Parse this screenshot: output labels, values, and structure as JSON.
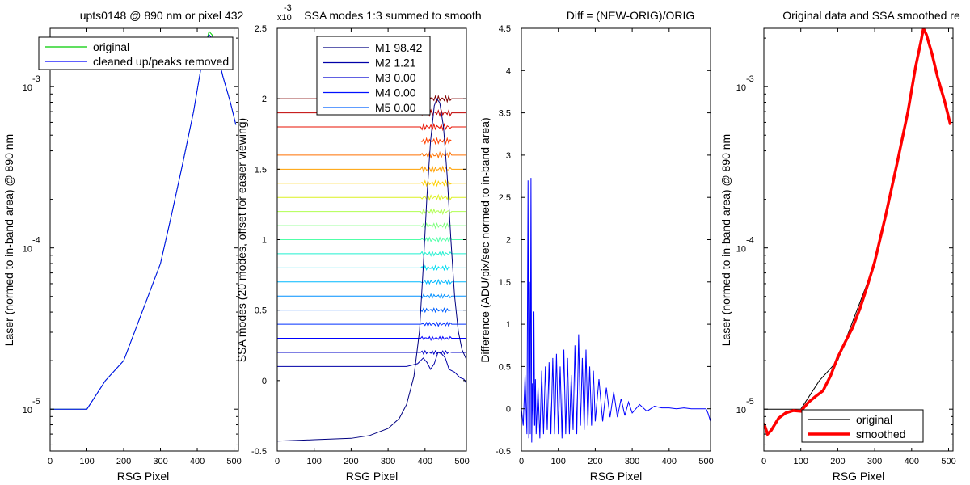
{
  "chart_data": [
    {
      "type": "line",
      "title": "upts0148 @ 890 nm or pixel 432",
      "xlabel": "RSG Pixel",
      "ylabel": "Laser (normed to in-band area) @ 890 nm",
      "xlim": [
        0,
        512
      ],
      "ylim": [
        5.5e-06,
        0.0023
      ],
      "yscale": "log",
      "xticks": [
        0,
        100,
        200,
        300,
        400,
        500
      ],
      "yticks": [
        {
          "label": "10",
          "exp": "-5",
          "value": 1e-05
        },
        {
          "label": "10",
          "exp": "-4",
          "value": 0.0001
        },
        {
          "label": "10",
          "exp": "-3",
          "value": 0.001
        }
      ],
      "legend_position": "top",
      "series": [
        {
          "name": "original",
          "color": "#00cc00",
          "x": [
            0,
            50,
            100,
            150,
            200,
            250,
            300,
            330,
            360,
            390,
            410,
            425,
            432,
            440,
            455,
            470,
            490,
            505
          ],
          "y": [
            1e-05,
            1e-05,
            1e-05,
            1.5e-05,
            2e-05,
            4e-05,
            8e-05,
            0.00016,
            0.00033,
            0.0007,
            0.0013,
            0.0019,
            0.0022,
            0.0021,
            0.0016,
            0.00115,
            0.0008,
            0.00058
          ]
        },
        {
          "name": "cleaned up/peaks removed",
          "color": "#0000ff",
          "x": [
            0,
            50,
            100,
            150,
            200,
            250,
            300,
            330,
            360,
            390,
            410,
            425,
            432,
            440,
            455,
            470,
            490,
            505
          ],
          "y": [
            1e-05,
            1e-05,
            1e-05,
            1.5e-05,
            2e-05,
            4e-05,
            8e-05,
            0.00016,
            0.00033,
            0.0007,
            0.0013,
            0.0019,
            0.0021,
            0.002,
            0.0016,
            0.00115,
            0.0008,
            0.00058
          ]
        }
      ]
    },
    {
      "type": "line",
      "title": "SSA modes 1:3 summed to smooth",
      "xlabel": "RSG Pixel",
      "ylabel": "SSA modes (20 modes, offset for easier viewing)",
      "xlim": [
        0,
        512
      ],
      "ylim": [
        -0.5,
        2.5
      ],
      "yscale_multiplier": {
        "base": "x10",
        "exp": "-3"
      },
      "xticks": [
        0,
        100,
        200,
        300,
        400,
        500
      ],
      "yticks": [
        -0.5,
        0,
        0.5,
        1,
        1.5,
        2,
        2.5
      ],
      "legend_position": "top",
      "legend": [
        {
          "name": "M1 98.42",
          "color": "#000080"
        },
        {
          "name": "M2 1.21",
          "color": "#0000a8"
        },
        {
          "name": "M3 0.00",
          "color": "#0000d0"
        },
        {
          "name": "M4 0.00",
          "color": "#0010ff"
        },
        {
          "name": "M5 0.00",
          "color": "#0060ff"
        }
      ],
      "mode1": {
        "color": "#000080",
        "x": [
          0,
          100,
          200,
          250,
          300,
          330,
          350,
          370,
          385,
          395,
          405,
          415,
          425,
          432,
          440,
          450,
          460,
          470,
          480,
          490,
          500,
          512
        ],
        "y": [
          -0.43,
          -0.42,
          -0.41,
          -0.39,
          -0.34,
          -0.27,
          -0.17,
          0.03,
          0.35,
          0.8,
          1.3,
          1.7,
          1.95,
          2.0,
          1.97,
          1.8,
          1.45,
          1.0,
          0.6,
          0.35,
          0.22,
          0.15
        ]
      },
      "mode2": {
        "color": "#0000a8",
        "x": [
          0,
          100,
          200,
          300,
          350,
          380,
          395,
          405,
          415,
          425,
          435,
          445,
          455,
          465,
          480,
          495,
          505,
          512
        ],
        "y": [
          0.1,
          0.1,
          0.1,
          0.1,
          0.1,
          0.12,
          0.16,
          0.13,
          0.08,
          0.12,
          0.2,
          0.19,
          0.16,
          0.08,
          0.06,
          0.02,
          0.01,
          -0.02
        ]
      },
      "offset_modes": [
        {
          "offset": 0.2,
          "color": "#0000c8"
        },
        {
          "offset": 0.3,
          "color": "#0000ff"
        },
        {
          "offset": 0.4,
          "color": "#0030ff"
        },
        {
          "offset": 0.5,
          "color": "#0060ff"
        },
        {
          "offset": 0.6,
          "color": "#0090ff"
        },
        {
          "offset": 0.7,
          "color": "#00b8ff"
        },
        {
          "offset": 0.8,
          "color": "#00dcf0"
        },
        {
          "offset": 0.9,
          "color": "#20f0d0"
        },
        {
          "offset": 1.0,
          "color": "#50ffa8"
        },
        {
          "offset": 1.1,
          "color": "#80ff80"
        },
        {
          "offset": 1.2,
          "color": "#b0ff50"
        },
        {
          "offset": 1.3,
          "color": "#dcf020"
        },
        {
          "offset": 1.4,
          "color": "#ffd000"
        },
        {
          "offset": 1.5,
          "color": "#ffa000"
        },
        {
          "offset": 1.6,
          "color": "#ff7000"
        },
        {
          "offset": 1.7,
          "color": "#ff4000"
        },
        {
          "offset": 1.8,
          "color": "#e81000"
        },
        {
          "offset": 1.9,
          "color": "#c00000"
        },
        {
          "offset": 2.0,
          "color": "#800000"
        }
      ]
    },
    {
      "type": "line",
      "title": "Diff = (NEW-ORIG)/ORIG",
      "xlabel": "RSG Pixel",
      "ylabel": "Difference (ADU/pix/sec normed to in-band area)",
      "xlim": [
        0,
        512
      ],
      "ylim": [
        -0.5,
        4.5
      ],
      "xticks": [
        0,
        100,
        200,
        300,
        400,
        500
      ],
      "yticks": [
        -0.5,
        0,
        0.5,
        1,
        1.5,
        2,
        2.5,
        3,
        3.5,
        4,
        4.5
      ],
      "series": [
        {
          "name": "diff",
          "color": "#0000ff",
          "x": [
            0,
            5,
            10,
            15,
            18,
            20,
            22,
            24,
            26,
            28,
            30,
            32,
            34,
            36,
            38,
            40,
            45,
            50,
            55,
            60,
            65,
            70,
            75,
            80,
            85,
            90,
            95,
            100,
            105,
            110,
            115,
            120,
            125,
            130,
            135,
            140,
            145,
            150,
            155,
            160,
            165,
            170,
            175,
            180,
            185,
            190,
            195,
            200,
            210,
            220,
            230,
            240,
            250,
            260,
            270,
            280,
            290,
            300,
            320,
            340,
            360,
            380,
            400,
            420,
            440,
            460,
            480,
            500,
            505,
            512
          ],
          "y": [
            0,
            -0.2,
            0.4,
            -0.3,
            2.7,
            -0.35,
            1.5,
            -0.3,
            2.73,
            -0.4,
            0.3,
            -0.2,
            1.15,
            -0.2,
            0.35,
            -0.3,
            0.25,
            -0.35,
            0.45,
            -0.3,
            0.5,
            -0.25,
            0.55,
            -0.3,
            0.6,
            -0.3,
            0.65,
            -0.3,
            0.5,
            -0.35,
            0.7,
            -0.3,
            0.6,
            -0.3,
            0.4,
            -0.25,
            0.75,
            -0.3,
            0.88,
            -0.2,
            0.6,
            -0.25,
            0.7,
            -0.2,
            0.5,
            -0.2,
            0.45,
            -0.15,
            0.35,
            -0.15,
            0.25,
            -0.1,
            0.2,
            -0.1,
            0.12,
            -0.08,
            0.08,
            -0.05,
            0.05,
            -0.03,
            0.03,
            0.01,
            0.01,
            0,
            0.01,
            0,
            0,
            0,
            -0.05,
            -0.15
          ]
        }
      ]
    },
    {
      "type": "line",
      "title": "Original data and SSA smoothed re",
      "xlabel": "RSG Pixel",
      "ylabel": "Laser (normed to in-band area) @ 890 nm",
      "xlim": [
        0,
        512
      ],
      "ylim": [
        5.5e-06,
        0.0023
      ],
      "yscale": "log",
      "xticks": [
        0,
        100,
        200,
        300,
        400,
        500
      ],
      "yticks": [
        {
          "label": "10",
          "exp": "-5",
          "value": 1e-05
        },
        {
          "label": "10",
          "exp": "-4",
          "value": 0.0001
        },
        {
          "label": "10",
          "exp": "-3",
          "value": 0.001
        }
      ],
      "legend_position": "bottom",
      "series": [
        {
          "name": "original",
          "color": "#000000",
          "x": [
            0,
            50,
            100,
            150,
            200,
            250,
            300,
            330,
            360,
            390,
            410,
            425,
            432,
            440,
            455,
            470,
            490,
            505
          ],
          "y": [
            1e-05,
            1e-05,
            1e-05,
            1.5e-05,
            2e-05,
            4e-05,
            8e-05,
            0.00016,
            0.00033,
            0.0007,
            0.0013,
            0.0019,
            0.0022,
            0.0021,
            0.0016,
            0.00115,
            0.0008,
            0.00058
          ]
        },
        {
          "name": "smoothed",
          "color": "#ff0000",
          "x": [
            0,
            10,
            20,
            40,
            60,
            80,
            100,
            120,
            140,
            160,
            180,
            200,
            220,
            240,
            260,
            280,
            300,
            330,
            360,
            390,
            410,
            425,
            432,
            440,
            455,
            470,
            490,
            505
          ],
          "y": [
            8.2e-06,
            7e-06,
            7.4e-06,
            8.8e-06,
            9.5e-06,
            9.8e-06,
            9.7e-06,
            1.1e-05,
            1.2e-05,
            1.3e-05,
            1.6e-05,
            2.1e-05,
            2.6e-05,
            3.2e-05,
            4.2e-05,
            5.8e-05,
            8.2e-05,
            0.00016,
            0.00033,
            0.0007,
            0.0013,
            0.0019,
            0.0023,
            0.0021,
            0.0016,
            0.00115,
            0.0008,
            0.00058
          ]
        }
      ]
    }
  ]
}
